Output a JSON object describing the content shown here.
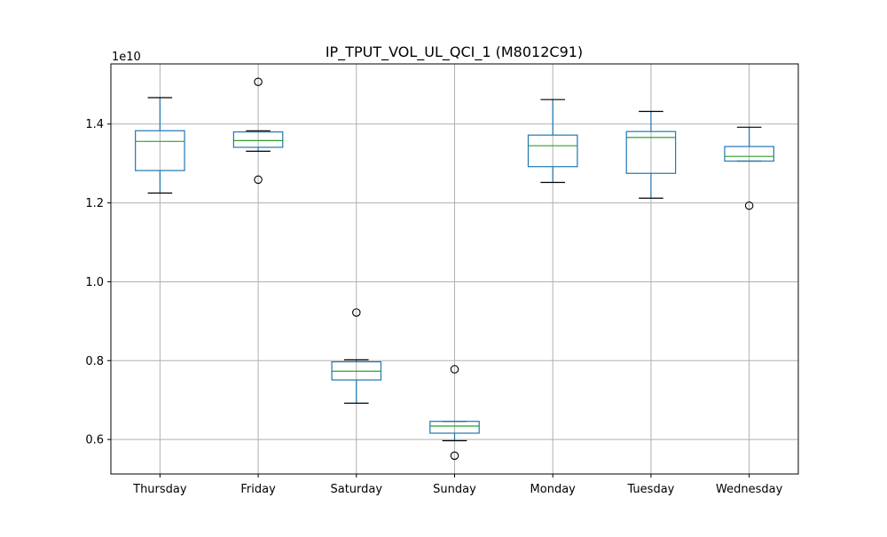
{
  "chart_data": {
    "type": "box",
    "title": "IP_TPUT_VOL_UL_QCI_1 (M8012C91)",
    "xlabel": "",
    "ylabel": "",
    "y_offset_label": "1e10",
    "y_scale_multiplier": 10000000000,
    "ylim": [
      0.5125,
      1.5525
    ],
    "yticks": [
      0.6,
      0.8,
      1.0,
      1.2,
      1.4
    ],
    "ytick_labels": [
      "0.6",
      "0.8",
      "1.0",
      "1.2",
      "1.4"
    ],
    "grid": true,
    "categories": [
      "Thursday",
      "Friday",
      "Saturday",
      "Sunday",
      "Monday",
      "Tuesday",
      "Wednesday"
    ],
    "boxes": [
      {
        "category": "Thursday",
        "whisker_low": 1.225,
        "q1": 1.282,
        "median": 1.356,
        "q3": 1.383,
        "whisker_high": 1.467,
        "outliers": []
      },
      {
        "category": "Friday",
        "whisker_low": 1.331,
        "q1": 1.341,
        "median": 1.358,
        "q3": 1.38,
        "whisker_high": 1.383,
        "outliers": [
          1.507,
          1.259
        ]
      },
      {
        "category": "Saturday",
        "whisker_low": 0.692,
        "q1": 0.751,
        "median": 0.773,
        "q3": 0.797,
        "whisker_high": 0.802,
        "outliers": [
          0.922
        ]
      },
      {
        "category": "Sunday",
        "whisker_low": 0.597,
        "q1": 0.616,
        "median": 0.634,
        "q3": 0.646,
        "whisker_high": 0.646,
        "outliers": [
          0.778,
          0.559
        ]
      },
      {
        "category": "Monday",
        "whisker_low": 1.252,
        "q1": 1.292,
        "median": 1.345,
        "q3": 1.372,
        "whisker_high": 1.462,
        "outliers": []
      },
      {
        "category": "Tuesday",
        "whisker_low": 1.212,
        "q1": 1.275,
        "median": 1.366,
        "q3": 1.381,
        "whisker_high": 1.432,
        "outliers": []
      },
      {
        "category": "Wednesday",
        "whisker_low": 1.306,
        "q1": 1.306,
        "median": 1.318,
        "q3": 1.343,
        "whisker_high": 1.392,
        "outliers": [
          1.193
        ]
      }
    ],
    "colors": {
      "box": "#1f77b4",
      "median": "#2ca02c",
      "whisker": "#1f77b4",
      "cap": "#000000",
      "outlier": "#000000",
      "grid": "#b0b0b0",
      "axes": "#000000"
    }
  }
}
